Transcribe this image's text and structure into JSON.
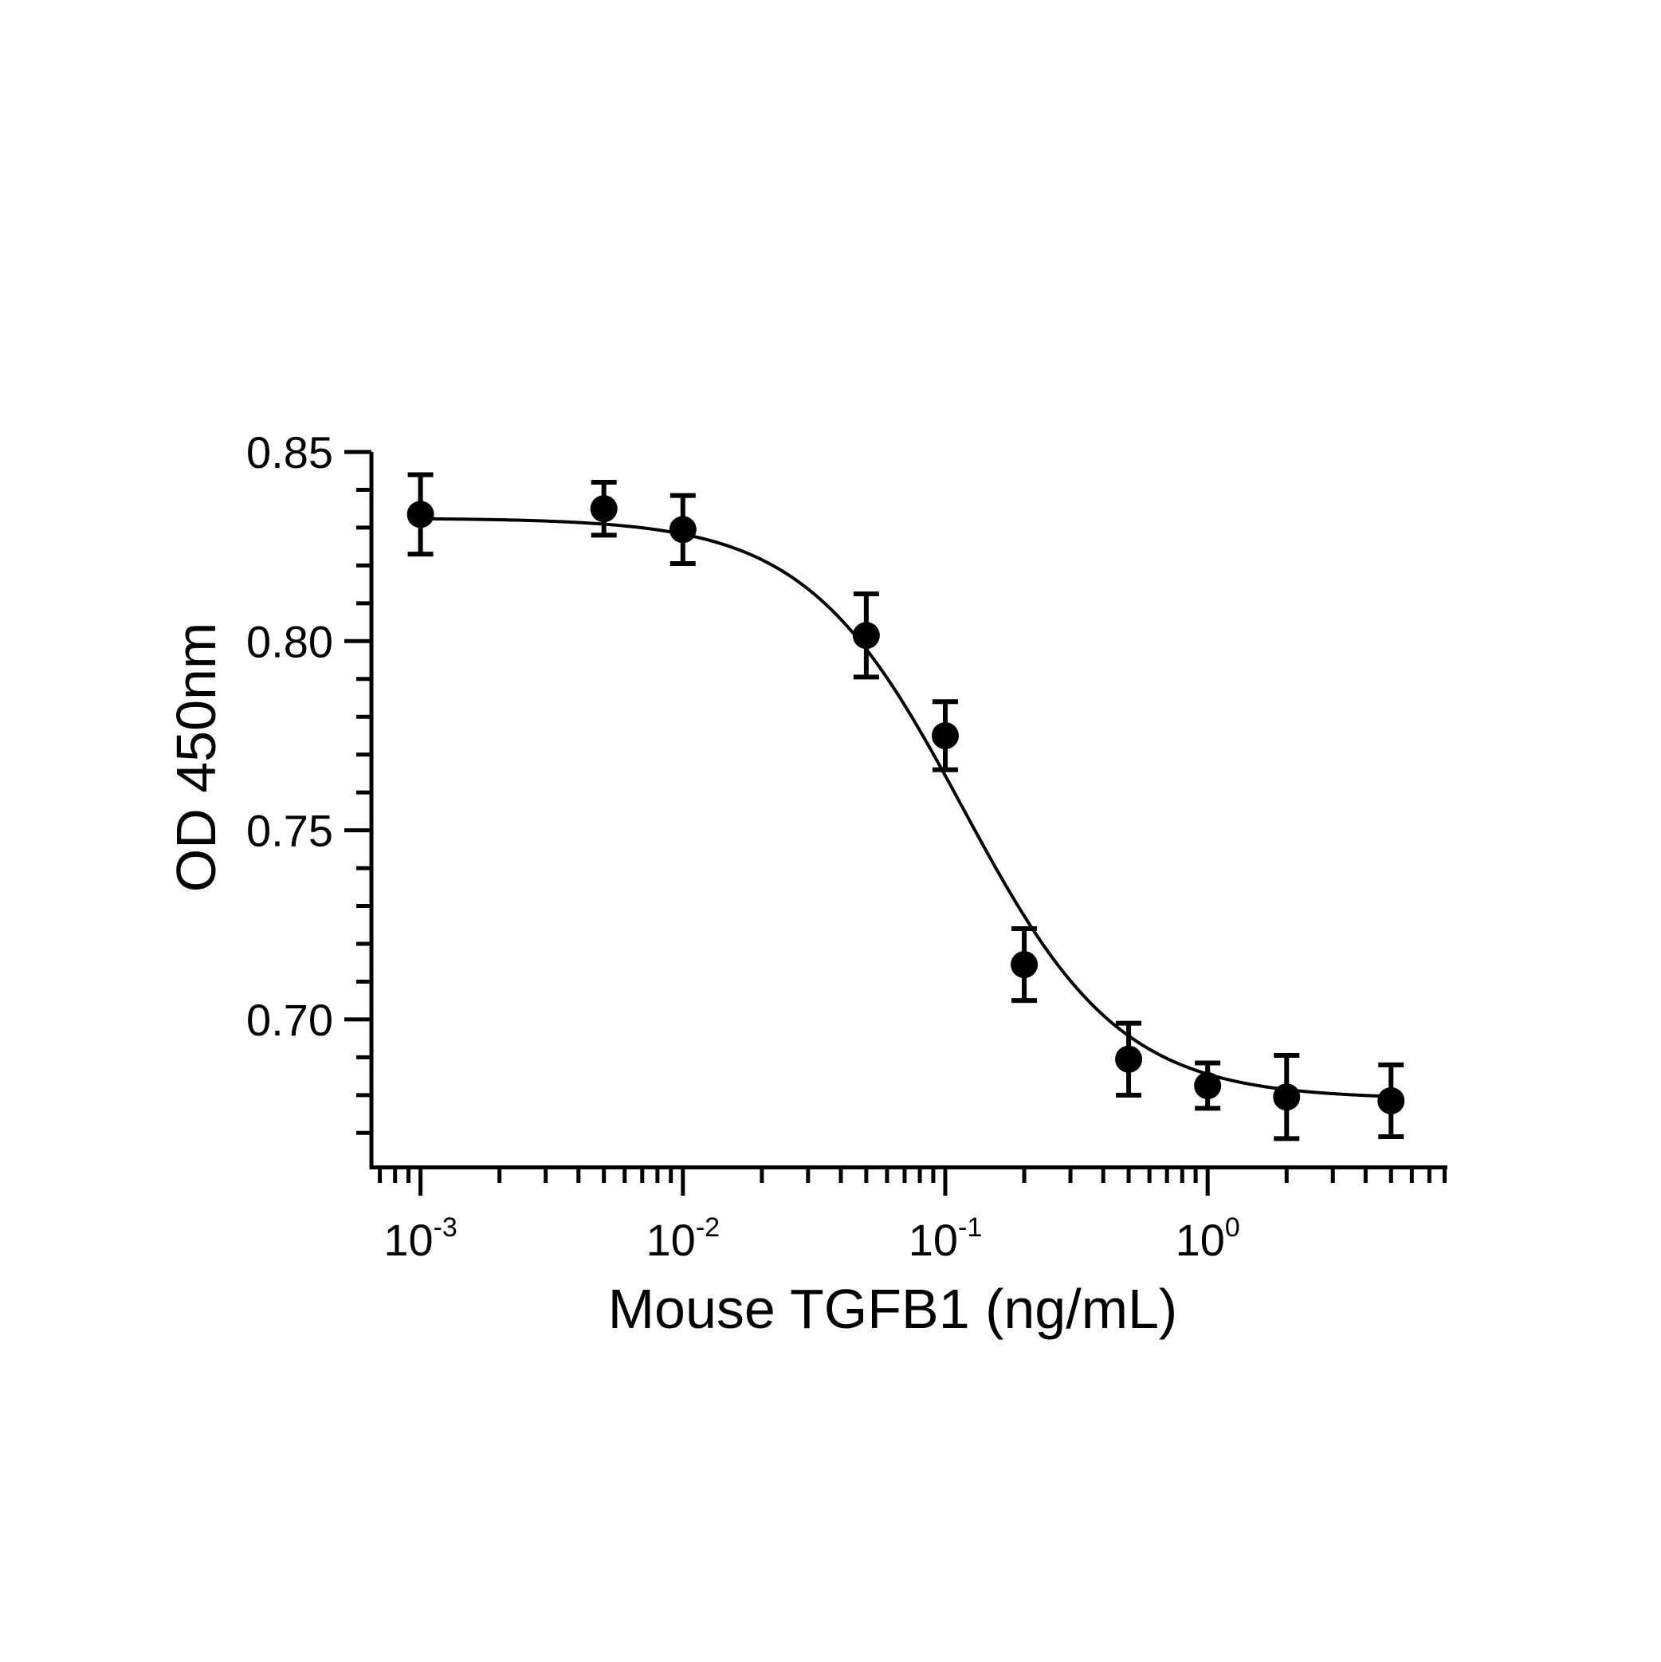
{
  "chart_data": {
    "type": "scatter",
    "xlabel": "Mouse TGFB1 (ng/mL)",
    "ylabel": "OD 450nm",
    "x_scale": "log",
    "xlim": [
      0.00065,
      8.2
    ],
    "ylim": [
      0.661,
      0.85
    ],
    "grid": false,
    "color": "#000000",
    "x_ticks": [
      {
        "value": 0.001,
        "base": "10",
        "exp": "-3"
      },
      {
        "value": 0.01,
        "base": "10",
        "exp": "-2"
      },
      {
        "value": 0.1,
        "base": "10",
        "exp": "-1"
      },
      {
        "value": 1,
        "base": "10",
        "exp": "0"
      }
    ],
    "y_ticks": [
      {
        "value": 0.7,
        "label": "0.70"
      },
      {
        "value": 0.75,
        "label": "0.75"
      },
      {
        "value": 0.8,
        "label": "0.80"
      },
      {
        "value": 0.85,
        "label": "0.85"
      }
    ],
    "y_minor_step": 0.01,
    "points": [
      {
        "x": 0.001,
        "y": 0.8335,
        "err": 0.0105
      },
      {
        "x": 0.005,
        "y": 0.835,
        "err": 0.007
      },
      {
        "x": 0.01,
        "y": 0.8295,
        "err": 0.009
      },
      {
        "x": 0.05,
        "y": 0.8015,
        "err": 0.011
      },
      {
        "x": 0.1,
        "y": 0.775,
        "err": 0.009
      },
      {
        "x": 0.2,
        "y": 0.7145,
        "err": 0.0095
      },
      {
        "x": 0.5,
        "y": 0.6895,
        "err": 0.0095
      },
      {
        "x": 1.0,
        "y": 0.6825,
        "err": 0.006
      },
      {
        "x": 2.0,
        "y": 0.6795,
        "err": 0.011
      },
      {
        "x": 5.0,
        "y": 0.6785,
        "err": 0.0095
      }
    ],
    "fit_curve": {
      "model": "4PL",
      "top": 0.8325,
      "bottom": 0.679,
      "ec50": 0.117,
      "hill": 1.45
    }
  }
}
